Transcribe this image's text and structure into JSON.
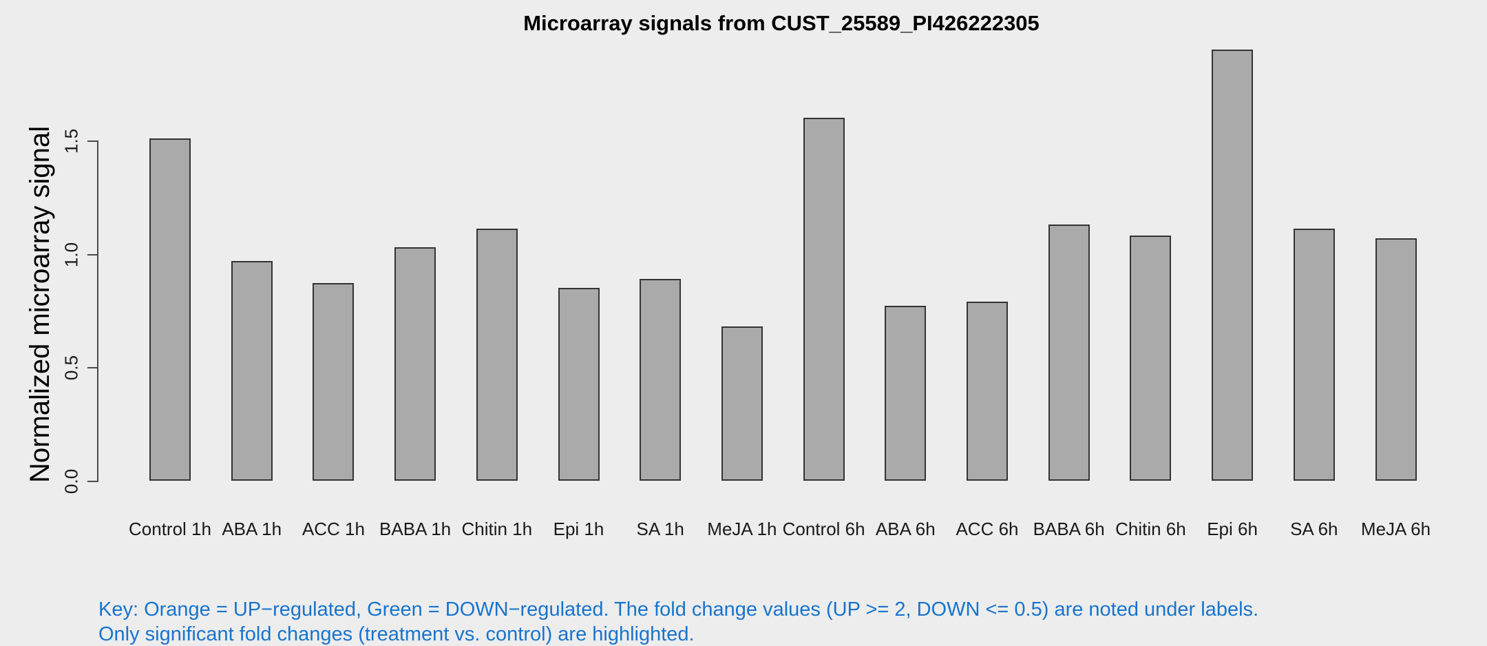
{
  "title": "Microarray signals from CUST_25589_PI426222305",
  "chart_data": {
    "type": "bar",
    "title": "Microarray signals from CUST_25589_PI426222305",
    "xlabel": "",
    "ylabel": "Normalized microarray signal",
    "categories": [
      "Control 1h",
      "ABA 1h",
      "ACC 1h",
      "BABA 1h",
      "Chitin 1h",
      "Epi 1h",
      "SA 1h",
      "MeJA 1h",
      "Control 6h",
      "ABA 6h",
      "ACC 6h",
      "BABA 6h",
      "Chitin 6h",
      "Epi 6h",
      "SA 6h",
      "MeJA 6h"
    ],
    "values": [
      1.51,
      0.97,
      0.87,
      1.03,
      1.11,
      0.85,
      0.89,
      0.68,
      1.6,
      0.77,
      0.79,
      1.13,
      1.08,
      1.9,
      1.11,
      1.07
    ],
    "yticks": [
      0,
      0.5,
      1.0,
      1.5
    ],
    "ytick_labels": [
      "0.0",
      "0.5",
      "1.0",
      "1.5"
    ],
    "ylim": [
      0,
      1.95
    ],
    "grid": false,
    "legend_position": "none",
    "bar_color": "#AAAAAA",
    "bar_border_color": "#333333",
    "axis_color": "#4a4a4a"
  },
  "footer": {
    "key_line1": "Key: Orange = UP−regulated, Green = DOWN−regulated. The fold change values (UP >= 2, DOWN <= 0.5) are noted under labels.",
    "key_line2": "Only significant fold changes (treatment vs. control) are highlighted.",
    "key_color": "#1874CD"
  },
  "colors": {
    "background": "#EDEDED"
  }
}
